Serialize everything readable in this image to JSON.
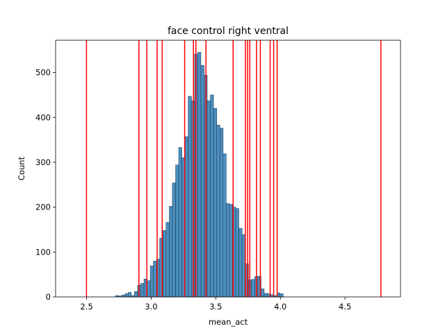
{
  "chart_data": {
    "type": "bar",
    "title": "face control right ventral",
    "xlabel": "mean_act",
    "ylabel": "Count",
    "xlim": [
      2.26,
      4.93
    ],
    "ylim": [
      0,
      572
    ],
    "xticks": [
      2.5,
      3.0,
      3.5,
      4.0,
      4.5
    ],
    "xtick_labels": [
      "2.5",
      "3.0",
      "3.5",
      "4.0",
      "4.5"
    ],
    "yticks": [
      0,
      100,
      200,
      300,
      400,
      500
    ],
    "ytick_labels": [
      "0",
      "100",
      "200",
      "300",
      "400",
      "500"
    ],
    "bar_color": "#4c8fbf",
    "bar_edge_color": "#1f3f5a",
    "vline_color": "#ff0000",
    "grid": false,
    "bin_width": 0.0245,
    "bin_starts": [
      2.723,
      2.748,
      2.772,
      2.797,
      2.821,
      2.846,
      2.87,
      2.895,
      2.919,
      2.944,
      2.968,
      2.993,
      3.017,
      3.042,
      3.066,
      3.091,
      3.115,
      3.14,
      3.164,
      3.189,
      3.213,
      3.238,
      3.262,
      3.287,
      3.311,
      3.336,
      3.36,
      3.385,
      3.409,
      3.434,
      3.458,
      3.483,
      3.507,
      3.532,
      3.556,
      3.581,
      3.605,
      3.63,
      3.654,
      3.679,
      3.703,
      3.728,
      3.752,
      3.777,
      3.801,
      3.826,
      3.85,
      3.875,
      3.899,
      3.924,
      3.948,
      3.973,
      3.997,
      4.022,
      4.046,
      4.071,
      4.095,
      4.12,
      4.144,
      4.169,
      4.193,
      4.218,
      4.242,
      4.267,
      4.291,
      4.316
    ],
    "values": [
      3,
      2,
      4,
      7,
      10,
      3,
      12,
      26,
      30,
      40,
      36,
      69,
      80,
      84,
      131,
      148,
      166,
      202,
      254,
      294,
      333,
      310,
      357,
      447,
      437,
      541,
      545,
      516,
      494,
      437,
      450,
      420,
      383,
      376,
      319,
      208,
      206,
      200,
      197,
      153,
      139,
      74,
      38,
      39,
      45,
      46,
      18,
      8,
      7,
      5,
      3,
      9,
      7,
      0,
      0,
      0,
      0,
      0,
      0,
      0,
      0,
      0,
      0,
      0,
      0,
      0
    ],
    "vlines": [
      2.499,
      2.905,
      2.966,
      3.046,
      3.085,
      3.259,
      3.327,
      3.346,
      3.424,
      3.634,
      3.729,
      3.746,
      3.763,
      3.815,
      3.845,
      3.921,
      3.948,
      3.975,
      4.778
    ]
  }
}
